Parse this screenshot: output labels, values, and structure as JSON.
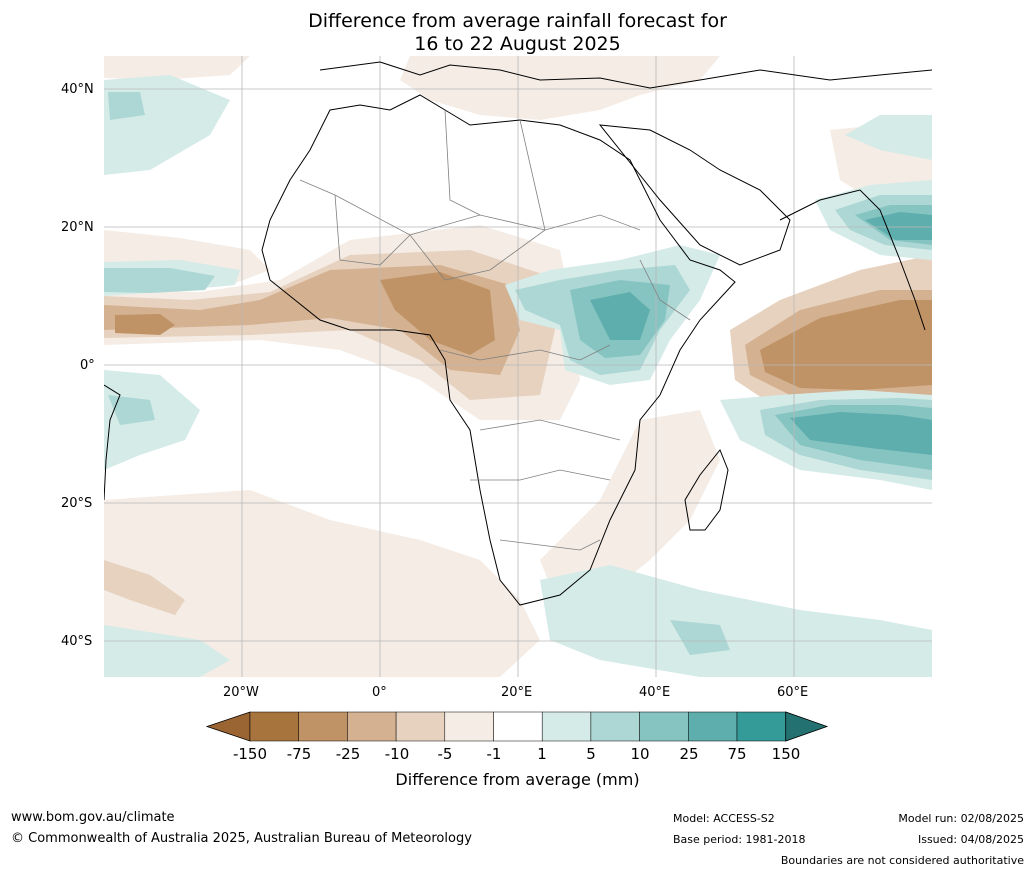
{
  "title_line1": "Difference from average rainfall forecast for",
  "title_line2": "16 to 22 August 2025",
  "lat_labels": [
    "40°N",
    "20°N",
    "0°",
    "20°S",
    "40°S"
  ],
  "lon_labels": [
    "20°W",
    "0°",
    "20°E",
    "40°E",
    "60°E"
  ],
  "colorbar": {
    "title": "Difference from average (mm)",
    "ticks": [
      "-150",
      "-75",
      "-25",
      "-10",
      "-5",
      "-1",
      "1",
      "5",
      "10",
      "25",
      "75",
      "150"
    ],
    "colors": [
      "#a8743e",
      "#c09366",
      "#d4b191",
      "#e6d2bf",
      "#f4ece5",
      "#ffffff",
      "#d5ebe8",
      "#acd7d4",
      "#86c4c2",
      "#5eaead",
      "#359b99",
      "#2b7f7d"
    ],
    "extend_low_color": "#9a6433",
    "extend_high_color": "#237170"
  },
  "footer": {
    "url": "www.bom.gov.au/climate",
    "copyright": "© Commonwealth of Australia 2025, Australian Bureau of Meteorology",
    "model": "Model: ACCESS-S2",
    "base_period": "Base period: 1981-2018",
    "model_run": "Model run: 02/08/2025",
    "issued": "Issued: 04/08/2025",
    "disclaimer": "Boundaries are not considered authoritative"
  }
}
